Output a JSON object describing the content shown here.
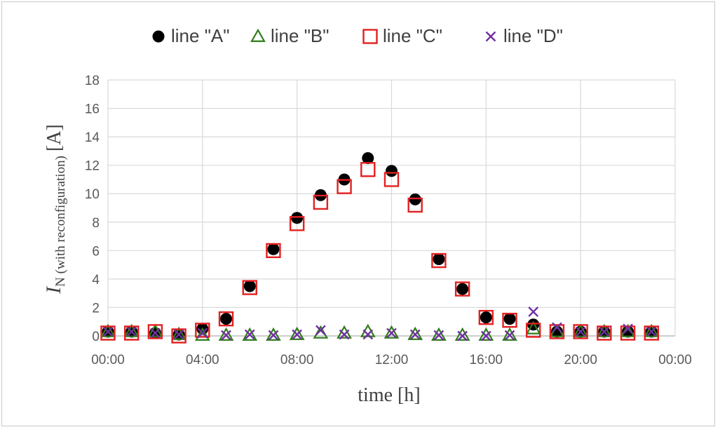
{
  "chart_data": {
    "type": "scatter",
    "xlabel": "time [h]",
    "ylabel": {
      "symbol": "I",
      "subscript": "N (with reconfiguration)",
      "unit": "[A]"
    },
    "ylim": [
      0,
      18
    ],
    "y_ticks": [
      0,
      2,
      4,
      6,
      8,
      10,
      12,
      14,
      16,
      18
    ],
    "y_tick_labels": [
      "0",
      "2",
      "4",
      "6",
      "8",
      "10",
      "12",
      "14",
      "16",
      "18"
    ],
    "xlim": [
      0,
      24
    ],
    "x_ticks": [
      0,
      4,
      8,
      12,
      16,
      20,
      24
    ],
    "x_tick_labels": [
      "00:00",
      "04:00",
      "08:00",
      "12:00",
      "16:00",
      "20:00",
      "00:00"
    ],
    "x": [
      0,
      1,
      2,
      3,
      4,
      5,
      6,
      7,
      8,
      9,
      10,
      11,
      12,
      13,
      14,
      15,
      16,
      17,
      18,
      19,
      20,
      21,
      22,
      23
    ],
    "grid": true,
    "legend_position": "top",
    "series": [
      {
        "name": "line \"A\"",
        "marker": "filled-circle",
        "color": "#000000",
        "values": [
          0.3,
          0.3,
          0.2,
          0.1,
          0.5,
          1.2,
          3.5,
          6.1,
          8.3,
          9.9,
          11.0,
          12.5,
          11.6,
          9.6,
          5.4,
          3.3,
          1.3,
          1.2,
          0.8,
          0.3,
          0.3,
          0.3,
          0.3,
          0.3
        ]
      },
      {
        "name": "line \"B\"",
        "marker": "open-triangle",
        "color": "#2e7d1a",
        "values": [
          0.3,
          0.3,
          0.3,
          0.1,
          0.05,
          0.05,
          0.05,
          0.05,
          0.1,
          0.2,
          0.2,
          0.3,
          0.2,
          0.1,
          0.05,
          0.05,
          0.05,
          0.05,
          0.5,
          0.3,
          0.3,
          0.3,
          0.3,
          0.3
        ]
      },
      {
        "name": "line \"C\"",
        "marker": "open-square",
        "color": "#e32020",
        "values": [
          0.2,
          0.2,
          0.3,
          0.0,
          0.4,
          1.2,
          3.4,
          6.0,
          7.9,
          9.4,
          10.5,
          11.7,
          11.0,
          9.2,
          5.3,
          3.3,
          1.3,
          1.1,
          0.4,
          0.3,
          0.3,
          0.2,
          0.2,
          0.2
        ]
      },
      {
        "name": "line \"D\"",
        "marker": "x-cross",
        "color": "#7030a0",
        "values": [
          0.3,
          0.3,
          0.2,
          0.1,
          0.2,
          0.05,
          0.1,
          0.05,
          0.1,
          0.4,
          0.1,
          0.1,
          0.2,
          0.1,
          0.05,
          0.0,
          0.0,
          0.05,
          1.7,
          0.6,
          0.3,
          0.3,
          0.5,
          0.3
        ]
      }
    ]
  }
}
